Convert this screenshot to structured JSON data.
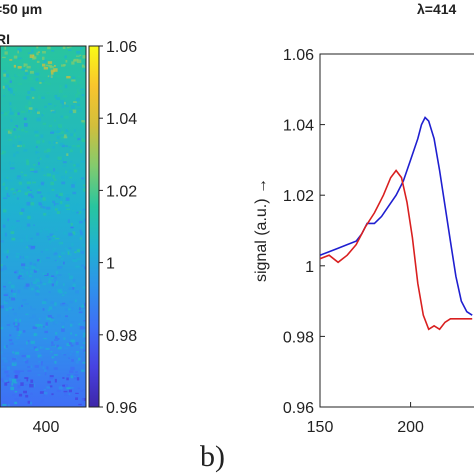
{
  "chart_data": [
    {
      "type": "heatmap",
      "title": "=50 µm",
      "label": "RI",
      "colormap": [
        "#3e26a8",
        "#4742e2",
        "#3f6ef6",
        "#2e92eb",
        "#1fb2d0",
        "#28c59f",
        "#82cb6e",
        "#d1be3c",
        "#f9c52d",
        "#f9fb15"
      ],
      "xticks": [
        "400"
      ],
      "colorbar": {
        "min": 0.96,
        "max": 1.06,
        "ticks": [
          "1.06",
          "1.04",
          "1.02",
          "1",
          "0.98",
          "0.96"
        ]
      }
    },
    {
      "type": "line",
      "panel_label": "b)",
      "title": "λ=414",
      "ylabel": "signal (a.u.) →",
      "xlim": [
        150,
        235
      ],
      "ylim": [
        0.96,
        1.06
      ],
      "xticks": [
        "150",
        "200"
      ],
      "yticks": [
        "1.06",
        "1.04",
        "1.02",
        "1",
        "0.98",
        "0.96"
      ],
      "series": [
        {
          "color": "#1f1fd0",
          "x": [
            150,
            155,
            160,
            165,
            170,
            173,
            176,
            180,
            184,
            188,
            192,
            196,
            200,
            204,
            206,
            208,
            210,
            213,
            216,
            219,
            222,
            225,
            228,
            231,
            234
          ],
          "y": [
            1.003,
            1.004,
            1.005,
            1.006,
            1.007,
            1.009,
            1.012,
            1.012,
            1.014,
            1.017,
            1.02,
            1.024,
            1.03,
            1.036,
            1.04,
            1.042,
            1.041,
            1.036,
            1.027,
            1.017,
            1.007,
            0.997,
            0.99,
            0.987,
            0.986
          ]
        },
        {
          "color": "#d92020",
          "x": [
            150,
            155,
            160,
            165,
            170,
            175,
            180,
            185,
            189,
            192,
            195,
            198,
            201,
            204,
            207,
            210,
            213,
            216,
            219,
            222,
            225,
            228,
            231,
            234
          ],
          "y": [
            1.002,
            1.003,
            1.001,
            1.003,
            1.006,
            1.011,
            1.015,
            1.02,
            1.025,
            1.027,
            1.025,
            1.018,
            1.008,
            0.995,
            0.986,
            0.982,
            0.983,
            0.982,
            0.984,
            0.985,
            0.985,
            0.985,
            0.985,
            0.985
          ]
        }
      ]
    }
  ]
}
